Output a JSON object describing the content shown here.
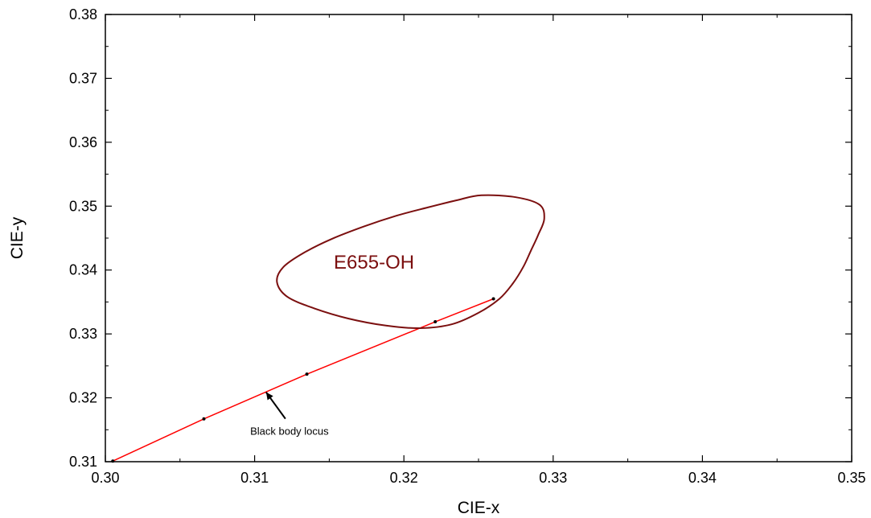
{
  "chart_data": {
    "type": "line",
    "xlabel": "CIE-x",
    "ylabel": "CIE-y",
    "xlim": [
      0.3,
      0.35
    ],
    "ylim": [
      0.31,
      0.38
    ],
    "x_ticks": [
      "0.30",
      "0.31",
      "0.32",
      "0.33",
      "0.34",
      "0.35"
    ],
    "y_ticks": [
      "0.31",
      "0.32",
      "0.33",
      "0.34",
      "0.35",
      "0.36",
      "0.37",
      "0.38"
    ],
    "series": [
      {
        "name": "Black body locus",
        "color": "#ff0000",
        "x": [
          0.3005,
          0.3066,
          0.3135,
          0.3221,
          0.326
        ],
        "y": [
          0.3101,
          0.3167,
          0.3237,
          0.3319,
          0.3355
        ]
      }
    ],
    "ellipse": {
      "label": "E655-OH",
      "color": "#7b0f0f",
      "center": [
        0.318,
        0.3412
      ],
      "points": [
        [
          0.3252,
          0.3517
        ],
        [
          0.3235,
          0.3509
        ],
        [
          0.3216,
          0.3498
        ],
        [
          0.3195,
          0.3485
        ],
        [
          0.3173,
          0.3468
        ],
        [
          0.3152,
          0.3449
        ],
        [
          0.3133,
          0.3427
        ],
        [
          0.3119,
          0.3404
        ],
        [
          0.3115,
          0.3381
        ],
        [
          0.3122,
          0.3358
        ],
        [
          0.314,
          0.334
        ],
        [
          0.3163,
          0.3324
        ],
        [
          0.3188,
          0.3313
        ],
        [
          0.3211,
          0.3309
        ],
        [
          0.3232,
          0.3315
        ],
        [
          0.325,
          0.3333
        ],
        [
          0.3264,
          0.3355
        ],
        [
          0.3273,
          0.3379
        ],
        [
          0.328,
          0.3405
        ],
        [
          0.3285,
          0.343
        ],
        [
          0.329,
          0.3455
        ],
        [
          0.3294,
          0.348
        ],
        [
          0.3291,
          0.3502
        ],
        [
          0.3275,
          0.3514
        ]
      ]
    },
    "annotations": [
      {
        "text": "Black body locus",
        "points_to": [
          0.3105,
          0.3205
        ]
      }
    ],
    "grid": false,
    "legend": "none"
  }
}
